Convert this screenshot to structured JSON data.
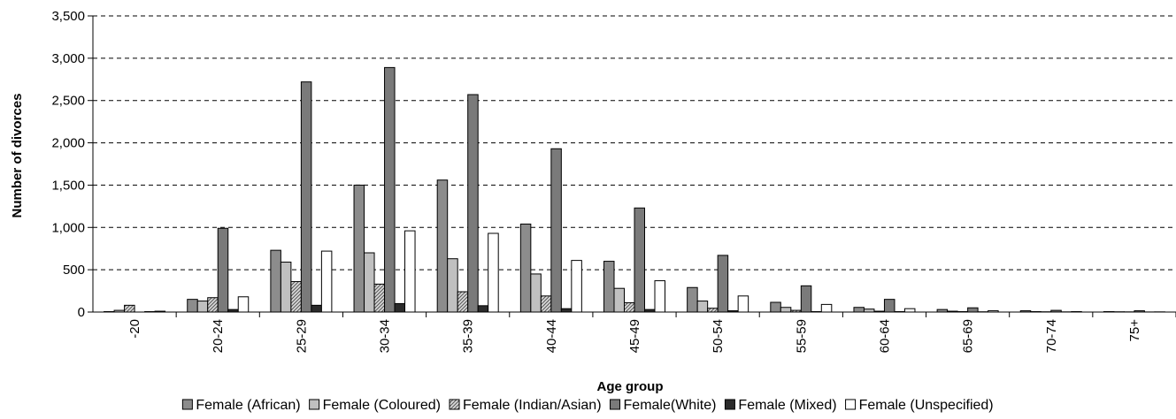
{
  "chart_data": {
    "type": "bar",
    "title": "",
    "xlabel": "Age group",
    "ylabel": "Number of divorces",
    "ylim": [
      0,
      3500
    ],
    "yticks": [
      "0",
      "500",
      "1,000",
      "1,500",
      "2,000",
      "2,500",
      "3,000",
      "3,500"
    ],
    "ytick_values": [
      0,
      500,
      1000,
      1500,
      2000,
      2500,
      3000,
      3500
    ],
    "grid": true,
    "legend_position": "bottom",
    "categories": [
      "-20",
      "20-24",
      "25-29",
      "30-34",
      "35-39",
      "40-44",
      "45-49",
      "50-54",
      "55-59",
      "60-64",
      "65-69",
      "70-74",
      "75+"
    ],
    "series": [
      {
        "name": "Female (African)",
        "color": "#8c8c8c",
        "pattern": "solid",
        "values": [
          5,
          150,
          730,
          1500,
          1560,
          1040,
          600,
          290,
          115,
          55,
          30,
          15,
          5
        ]
      },
      {
        "name": "Female (Coloured)",
        "color": "#c0c0c0",
        "pattern": "solid",
        "values": [
          20,
          130,
          590,
          700,
          630,
          450,
          280,
          130,
          55,
          35,
          10,
          5,
          3
        ]
      },
      {
        "name": "Female (Indian/Asian)",
        "color": "#b3b3b3",
        "pattern": "hatch",
        "values": [
          80,
          170,
          360,
          330,
          240,
          190,
          110,
          45,
          20,
          10,
          5,
          3,
          2
        ]
      },
      {
        "name": "Female(White)",
        "color": "#7a7a7a",
        "pattern": "solid",
        "values": [
          0,
          990,
          2720,
          2890,
          2570,
          1930,
          1230,
          670,
          310,
          150,
          50,
          20,
          15
        ]
      },
      {
        "name": "Female (Mixed)",
        "color": "#2b2b2b",
        "pattern": "solid",
        "values": [
          5,
          30,
          80,
          100,
          75,
          40,
          30,
          15,
          5,
          5,
          3,
          2,
          1
        ]
      },
      {
        "name": "Female (Unspecified)",
        "color": "#ffffff",
        "pattern": "solid",
        "values": [
          10,
          180,
          720,
          960,
          930,
          610,
          370,
          190,
          90,
          40,
          15,
          5,
          2
        ]
      }
    ]
  }
}
